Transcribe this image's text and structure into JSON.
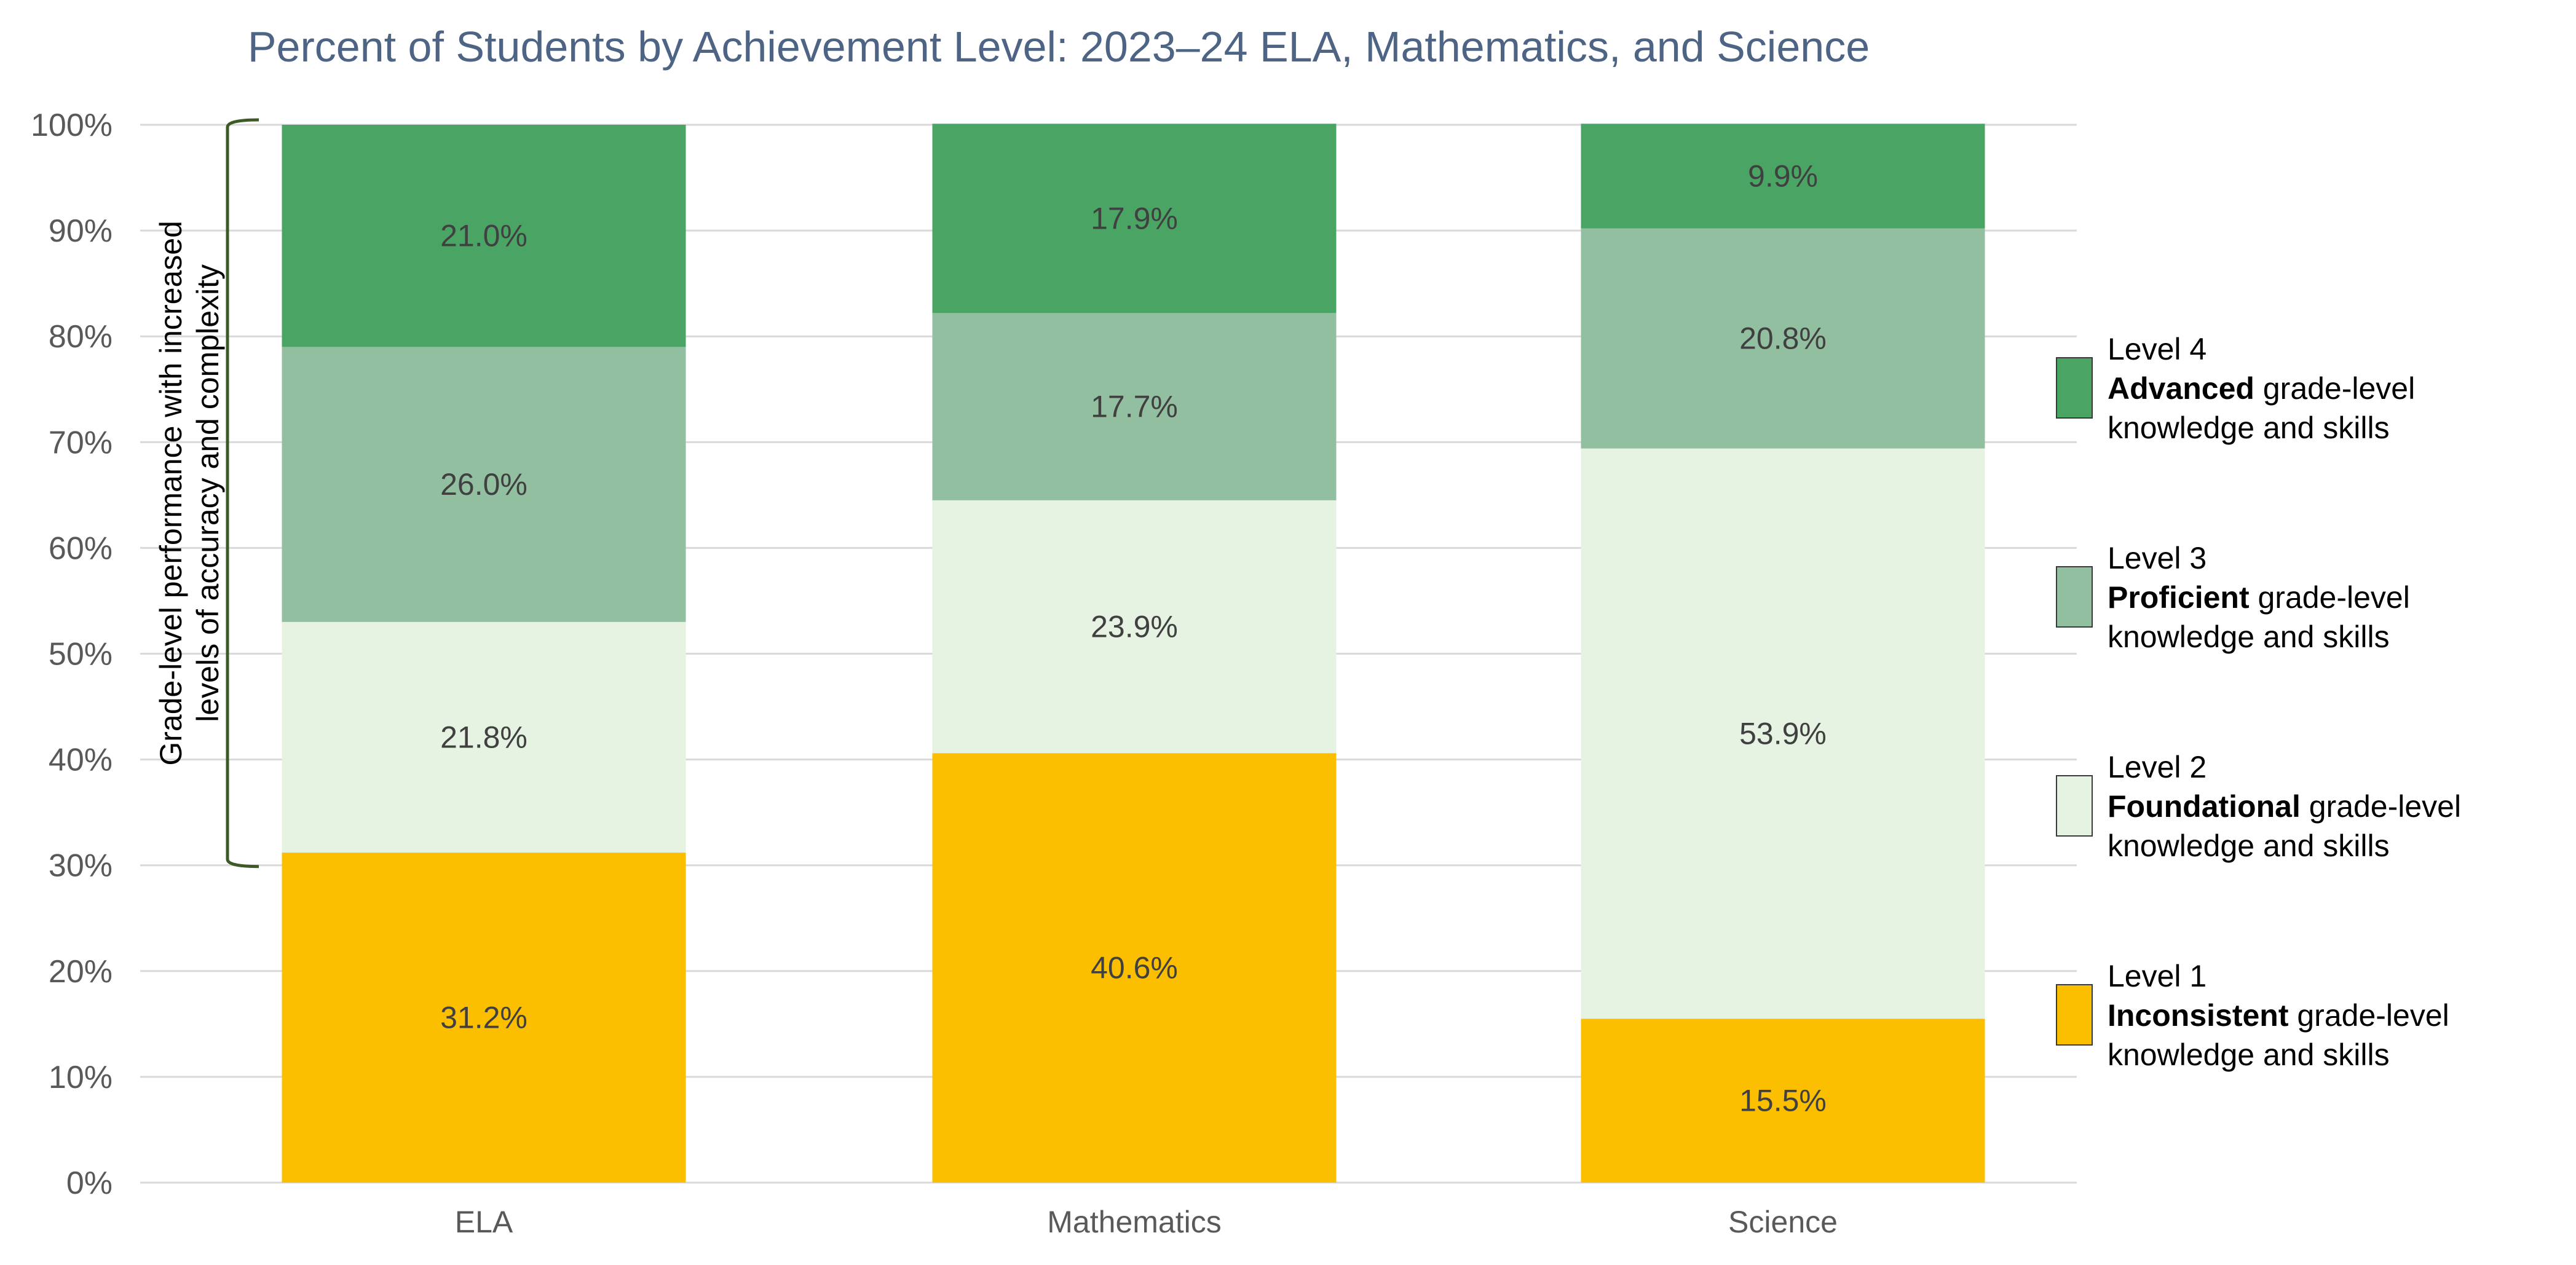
{
  "chart_data": {
    "type": "bar",
    "stacked": true,
    "title": "Percent of Students by Achievement Level: 2023–24 ELA, Mathematics, and Science",
    "categories": [
      "ELA",
      "Mathematics",
      "Science"
    ],
    "ylim": [
      0,
      100
    ],
    "y_ticks": [
      "0%",
      "10%",
      "20%",
      "30%",
      "40%",
      "50%",
      "60%",
      "70%",
      "80%",
      "90%",
      "100%"
    ],
    "grid": true,
    "legend_position": "right",
    "series": [
      {
        "name": "Level 1",
        "bold": "Inconsistent",
        "rest": " grade-level",
        "line3": "knowledge and skills",
        "color": "#fcbf00",
        "values": [
          31.2,
          40.6,
          15.5
        ],
        "labels": [
          "31.2%",
          "40.6%",
          "15.5%"
        ]
      },
      {
        "name": "Level 2",
        "bold": "Foundational",
        "rest": " grade-level",
        "line3": "knowledge and skills",
        "color": "#e6f2e2",
        "values": [
          21.8,
          23.9,
          53.9
        ],
        "labels": [
          "21.8%",
          "23.9%",
          "53.9%"
        ]
      },
      {
        "name": "Level 3",
        "bold": "Proficient",
        "rest": " grade-level",
        "line3": "knowledge and skills",
        "color": "#93bfa1",
        "values": [
          26.0,
          17.7,
          20.8
        ],
        "labels": [
          "26.0%",
          "17.7%",
          "20.8%"
        ]
      },
      {
        "name": "Level 4",
        "bold": "Advanced",
        "rest": " grade-level",
        "line3": "knowledge and skills",
        "color": "#4aa564",
        "values": [
          21.0,
          17.9,
          9.9
        ],
        "labels": [
          "21.0%",
          "17.9%",
          "9.9%"
        ]
      }
    ],
    "annotation": {
      "lines": [
        "Grade-level performance with increased",
        "levels of accuracy and complexity"
      ],
      "bracket_range": [
        30,
        100
      ],
      "color": "#3d5a26"
    }
  }
}
